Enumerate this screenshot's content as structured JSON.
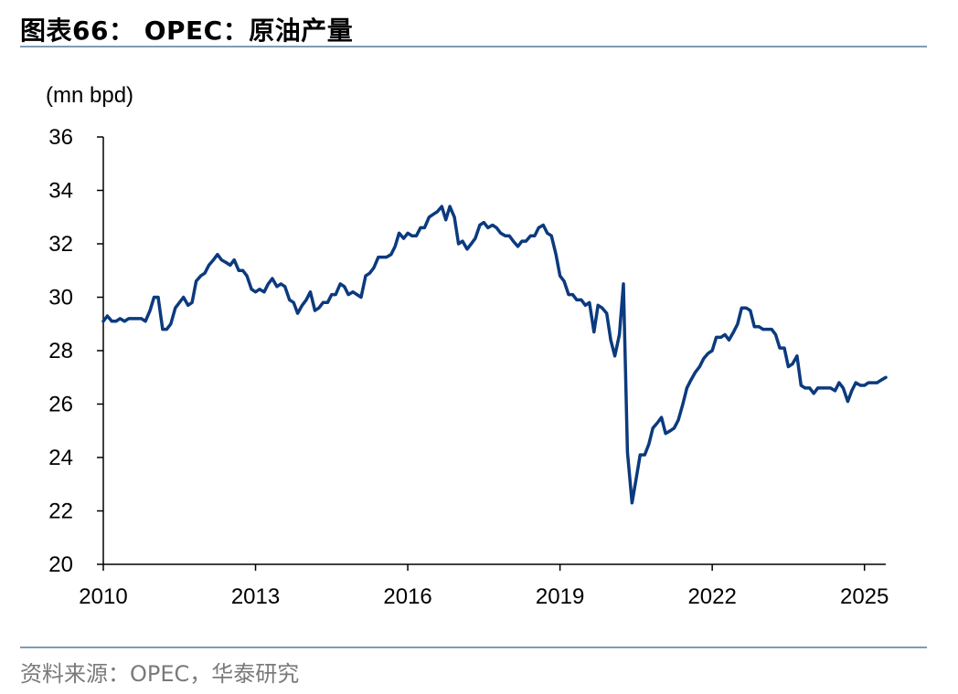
{
  "header": {
    "title": "图表66：  OPEC：原油产量"
  },
  "footer": {
    "source": "资料来源：OPEC，华泰研究"
  },
  "colors": {
    "line": "#0b3a7e",
    "axis": "#000000",
    "rule": "#7f9ab5"
  },
  "chart_data": {
    "type": "line",
    "title": "图表66：  OPEC：原油产量",
    "ylabel": "(mn bpd)",
    "xlabel": "",
    "ylim": [
      20,
      36
    ],
    "yticks": [
      "20",
      "22",
      "24",
      "26",
      "28",
      "30",
      "32",
      "34",
      "36"
    ],
    "xlim": [
      2010.0,
      2025.42
    ],
    "xticks": [
      "2010",
      "2013",
      "2016",
      "2019",
      "2022",
      "2025"
    ],
    "grid": false,
    "legend": "none",
    "series": [
      {
        "x": [
          2010.0,
          2010.08,
          2010.17,
          2010.25,
          2010.33,
          2010.42,
          2010.5,
          2010.58,
          2010.67,
          2010.75,
          2010.83,
          2010.92,
          2011.0,
          2011.08,
          2011.17,
          2011.25,
          2011.33,
          2011.42,
          2011.5,
          2011.58,
          2011.67,
          2011.75,
          2011.83,
          2011.92,
          2012.0,
          2012.08,
          2012.17,
          2012.25,
          2012.33,
          2012.42,
          2012.5,
          2012.58,
          2012.67,
          2012.75,
          2012.83,
          2012.92,
          2013.0,
          2013.08,
          2013.17,
          2013.25,
          2013.33,
          2013.42,
          2013.5,
          2013.58,
          2013.67,
          2013.75,
          2013.83,
          2013.92,
          2014.0,
          2014.08,
          2014.17,
          2014.25,
          2014.33,
          2014.42,
          2014.5,
          2014.58,
          2014.67,
          2014.75,
          2014.83,
          2014.92,
          2015.0,
          2015.08,
          2015.17,
          2015.25,
          2015.33,
          2015.42,
          2015.5,
          2015.58,
          2015.67,
          2015.75,
          2015.83,
          2015.92,
          2016.0,
          2016.08,
          2016.17,
          2016.25,
          2016.33,
          2016.42,
          2016.5,
          2016.58,
          2016.67,
          2016.75,
          2016.83,
          2016.92,
          2017.0,
          2017.08,
          2017.17,
          2017.25,
          2017.33,
          2017.42,
          2017.5,
          2017.58,
          2017.67,
          2017.75,
          2017.83,
          2017.92,
          2018.0,
          2018.08,
          2018.17,
          2018.25,
          2018.33,
          2018.42,
          2018.5,
          2018.58,
          2018.67,
          2018.75,
          2018.83,
          2018.92,
          2019.0,
          2019.08,
          2019.17,
          2019.25,
          2019.33,
          2019.42,
          2019.5,
          2019.58,
          2019.67,
          2019.75,
          2019.83,
          2019.92,
          2020.0,
          2020.08,
          2020.17,
          2020.25,
          2020.33,
          2020.42,
          2020.5,
          2020.58,
          2020.67,
          2020.75,
          2020.83,
          2020.92,
          2021.0,
          2021.08,
          2021.17,
          2021.25,
          2021.33,
          2021.42,
          2021.5,
          2021.58,
          2021.67,
          2021.75,
          2021.83,
          2021.92,
          2022.0,
          2022.08,
          2022.17,
          2022.25,
          2022.33,
          2022.42,
          2022.5,
          2022.58,
          2022.67,
          2022.75,
          2022.83,
          2022.92,
          2023.0,
          2023.08,
          2023.17,
          2023.25,
          2023.33,
          2023.42,
          2023.5,
          2023.58,
          2023.67,
          2023.75,
          2023.83,
          2023.92,
          2024.0,
          2024.08,
          2024.17,
          2024.25,
          2024.33,
          2024.42,
          2024.5,
          2024.58,
          2024.67,
          2024.75,
          2024.83,
          2024.92,
          2025.0,
          2025.08,
          2025.17,
          2025.25,
          2025.33,
          2025.42
        ],
        "values": [
          29.1,
          29.3,
          29.1,
          29.1,
          29.2,
          29.1,
          29.2,
          29.2,
          29.2,
          29.2,
          29.1,
          29.5,
          30.0,
          30.0,
          28.8,
          28.8,
          29.0,
          29.6,
          29.8,
          30.0,
          29.7,
          29.8,
          30.6,
          30.8,
          30.9,
          31.2,
          31.4,
          31.6,
          31.4,
          31.3,
          31.2,
          31.4,
          31.0,
          31.0,
          30.8,
          30.3,
          30.2,
          30.3,
          30.2,
          30.5,
          30.7,
          30.4,
          30.5,
          30.4,
          29.9,
          29.8,
          29.4,
          29.7,
          29.9,
          30.2,
          29.5,
          29.6,
          29.8,
          29.8,
          30.1,
          30.1,
          30.5,
          30.4,
          30.1,
          30.2,
          30.1,
          30.0,
          30.8,
          30.9,
          31.1,
          31.5,
          31.5,
          31.5,
          31.6,
          31.9,
          32.4,
          32.2,
          32.4,
          32.3,
          32.3,
          32.6,
          32.6,
          33.0,
          33.1,
          33.2,
          33.4,
          32.9,
          33.4,
          33.0,
          32.0,
          32.1,
          31.8,
          32.0,
          32.2,
          32.7,
          32.8,
          32.6,
          32.7,
          32.6,
          32.4,
          32.3,
          32.3,
          32.1,
          31.9,
          32.1,
          32.1,
          32.3,
          32.3,
          32.6,
          32.7,
          32.4,
          32.3,
          31.6,
          30.8,
          30.6,
          30.1,
          30.1,
          29.9,
          29.9,
          29.7,
          29.8,
          28.7,
          29.7,
          29.6,
          29.4,
          28.4,
          27.8,
          28.6,
          30.5,
          24.2,
          22.3,
          23.2,
          24.1,
          24.1,
          24.5,
          25.1,
          25.3,
          25.5,
          24.9,
          25.0,
          25.1,
          25.4,
          26.0,
          26.6,
          26.9,
          27.2,
          27.4,
          27.7,
          27.9,
          28.0,
          28.5,
          28.5,
          28.6,
          28.4,
          28.7,
          29.0,
          29.6,
          29.6,
          29.5,
          28.9,
          28.9,
          28.8,
          28.8,
          28.8,
          28.6,
          28.1,
          28.1,
          27.4,
          27.5,
          27.8,
          26.7,
          26.6,
          26.6,
          26.4,
          26.6,
          26.6,
          26.6,
          26.6,
          26.5,
          26.8,
          26.6,
          26.1,
          26.5,
          26.8,
          26.7,
          26.7,
          26.8,
          26.8,
          26.8,
          26.9,
          27.0
        ]
      }
    ]
  }
}
